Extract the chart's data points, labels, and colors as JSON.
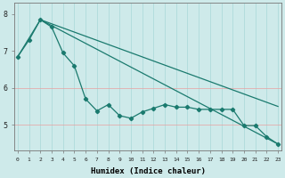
{
  "xlabel": "Humidex (Indice chaleur)",
  "x_ticks": [
    0,
    1,
    2,
    3,
    4,
    5,
    6,
    7,
    8,
    9,
    10,
    11,
    12,
    13,
    14,
    15,
    16,
    17,
    18,
    19,
    20,
    21,
    22,
    23
  ],
  "ylim": [
    4.3,
    8.3
  ],
  "xlim": [
    -0.3,
    23.3
  ],
  "yticks": [
    5,
    6,
    7,
    8
  ],
  "bg_color": "#ceeaea",
  "line_color": "#1a7a6e",
  "grid_color_h": "#e8a0a0",
  "grid_color_v": "#a8d8d8",
  "series1_x": [
    0,
    1,
    2,
    3,
    4,
    5,
    6,
    7,
    8,
    9,
    10,
    11,
    12,
    13,
    14,
    15,
    16,
    17,
    18,
    19,
    20,
    21,
    22,
    23
  ],
  "series1_y": [
    6.85,
    7.3,
    7.85,
    7.65,
    6.95,
    6.6,
    5.7,
    5.38,
    5.55,
    5.25,
    5.18,
    5.35,
    5.45,
    5.55,
    5.48,
    5.48,
    5.42,
    5.42,
    5.42,
    5.42,
    4.98,
    4.98,
    4.68,
    4.48
  ],
  "series2_x": [
    2,
    23
  ],
  "series2_y": [
    7.85,
    4.48
  ],
  "series3_x": [
    0,
    2,
    23
  ],
  "series3_y": [
    6.85,
    7.85,
    5.5
  ],
  "marker_style": "D",
  "marker_size": 2.2,
  "line_width": 0.9,
  "xlabel_fontsize": 6.5,
  "tick_fontsize_x": 4.5,
  "tick_fontsize_y": 6.0
}
